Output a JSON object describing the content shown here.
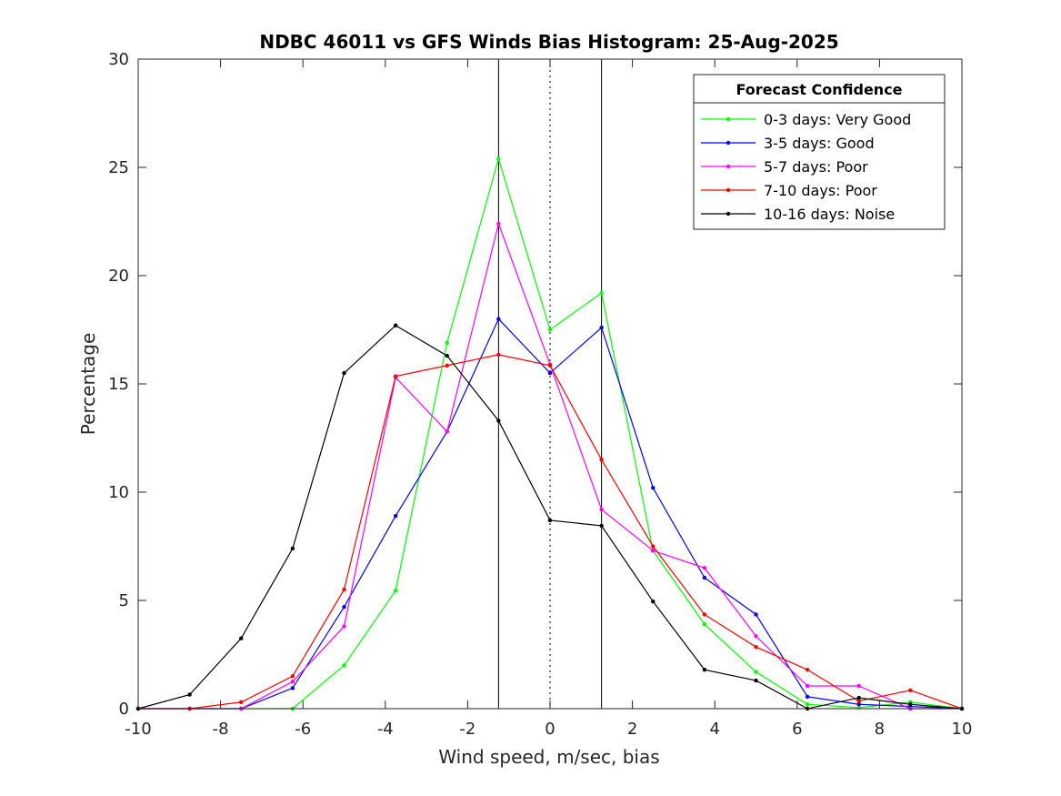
{
  "chart_data": {
    "type": "line",
    "title": "NDBC 46011 vs GFS Winds Bias Histogram: 25-Aug-2025",
    "xlabel": "Wind speed, m/sec, bias",
    "ylabel": "Percentage",
    "xlim": [
      -10,
      10
    ],
    "ylim": [
      0,
      30
    ],
    "xticks": [
      -10,
      -8,
      -6,
      -4,
      -2,
      0,
      2,
      4,
      6,
      8,
      10
    ],
    "yticks": [
      0,
      5,
      10,
      15,
      20,
      25,
      30
    ],
    "x": [
      -10,
      -8.75,
      -7.5,
      -6.25,
      -5,
      -3.75,
      -2.5,
      -1.25,
      0,
      1.25,
      2.5,
      3.75,
      5,
      6.25,
      7.5,
      8.75,
      10
    ],
    "reference_lines": [
      {
        "x": -1.25,
        "style": "solid"
      },
      {
        "x": 0,
        "style": "dotted"
      },
      {
        "x": 1.25,
        "style": "solid"
      }
    ],
    "legend_title": "Forecast Confidence",
    "legend_position": "top-right",
    "series": [
      {
        "name": "0-3 days: Very Good",
        "color": "#00ff00",
        "values": [
          0,
          0,
          0,
          0,
          2.0,
          5.45,
          16.9,
          25.4,
          17.5,
          19.2,
          7.3,
          3.9,
          1.7,
          0.2,
          0.05,
          0.3,
          0
        ]
      },
      {
        "name": "3-5 days: Good",
        "color": "#0000ff",
        "values": [
          0,
          0,
          0,
          0.95,
          4.7,
          8.9,
          12.8,
          18.0,
          15.5,
          17.6,
          10.2,
          6.05,
          4.35,
          0.55,
          0.2,
          0.1,
          0
        ]
      },
      {
        "name": "5-7 days: Poor",
        "color": "#ff00ff",
        "values": [
          0,
          0,
          0,
          1.25,
          3.8,
          15.3,
          12.8,
          22.4,
          15.9,
          9.2,
          7.3,
          6.5,
          3.35,
          1.05,
          1.05,
          0,
          0
        ]
      },
      {
        "name": "7-10 days: Poor",
        "color": "#ff0000",
        "values": [
          0,
          0,
          0.3,
          1.5,
          5.5,
          15.35,
          15.85,
          16.35,
          15.85,
          11.5,
          7.5,
          4.35,
          2.85,
          1.8,
          0.35,
          0.85,
          0
        ]
      },
      {
        "name": "10-16 days: Noise",
        "color": "#000000",
        "values": [
          0,
          0.65,
          3.25,
          7.4,
          15.5,
          17.7,
          16.3,
          13.3,
          8.7,
          8.45,
          4.95,
          1.8,
          1.3,
          0,
          0.5,
          0.2,
          0
        ]
      }
    ]
  }
}
